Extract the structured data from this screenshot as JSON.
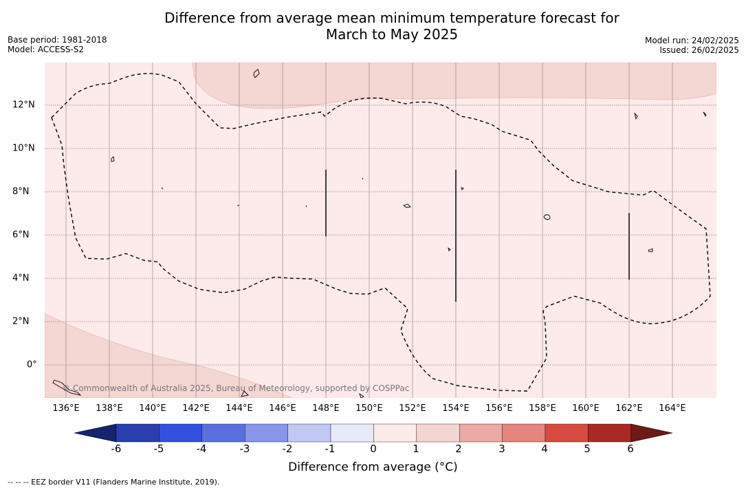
{
  "title_line1": "Difference from average mean minimum temperature forecast for",
  "title_line2": "March to May 2025",
  "base_period": "Base period: 1981-2018",
  "model": "Model: ACCESS-S2",
  "model_run": "Model run: 24/02/2025",
  "issued": "Issued: 26/02/2025",
  "copyright": "© Commonwealth of Australia 2025, Bureau of Meteorology, supported by COSPPac",
  "x_labels": [
    "136°E",
    "138°E",
    "140°E",
    "142°E",
    "144°E",
    "146°E",
    "148°E",
    "150°E",
    "152°E",
    "154°E",
    "156°E",
    "158°E",
    "160°E",
    "162°E",
    "164°E"
  ],
  "y_labels": [
    "12°N",
    "10°N",
    "8°N",
    "6°N",
    "4°N",
    "2°N",
    "0°"
  ],
  "colorbar": {
    "title": "Difference from average (°C)",
    "ticks": [
      "-6",
      "-5",
      "-4",
      "-3",
      "-2",
      "-1",
      "0",
      "1",
      "2",
      "3",
      "4",
      "5",
      "6"
    ],
    "colors": [
      "#14246e",
      "#2a3fb0",
      "#3350e0",
      "#5a70e0",
      "#8796e8",
      "#c2c8f4",
      "#e8eaf9",
      "#fcebea",
      "#f3d5d2",
      "#ebaaa4",
      "#e4857e",
      "#d94a40",
      "#a92823",
      "#6e1a16"
    ]
  },
  "footnote": "-- -- -- EEZ border V11 (Flanders Marine Institute, 2019)."
}
